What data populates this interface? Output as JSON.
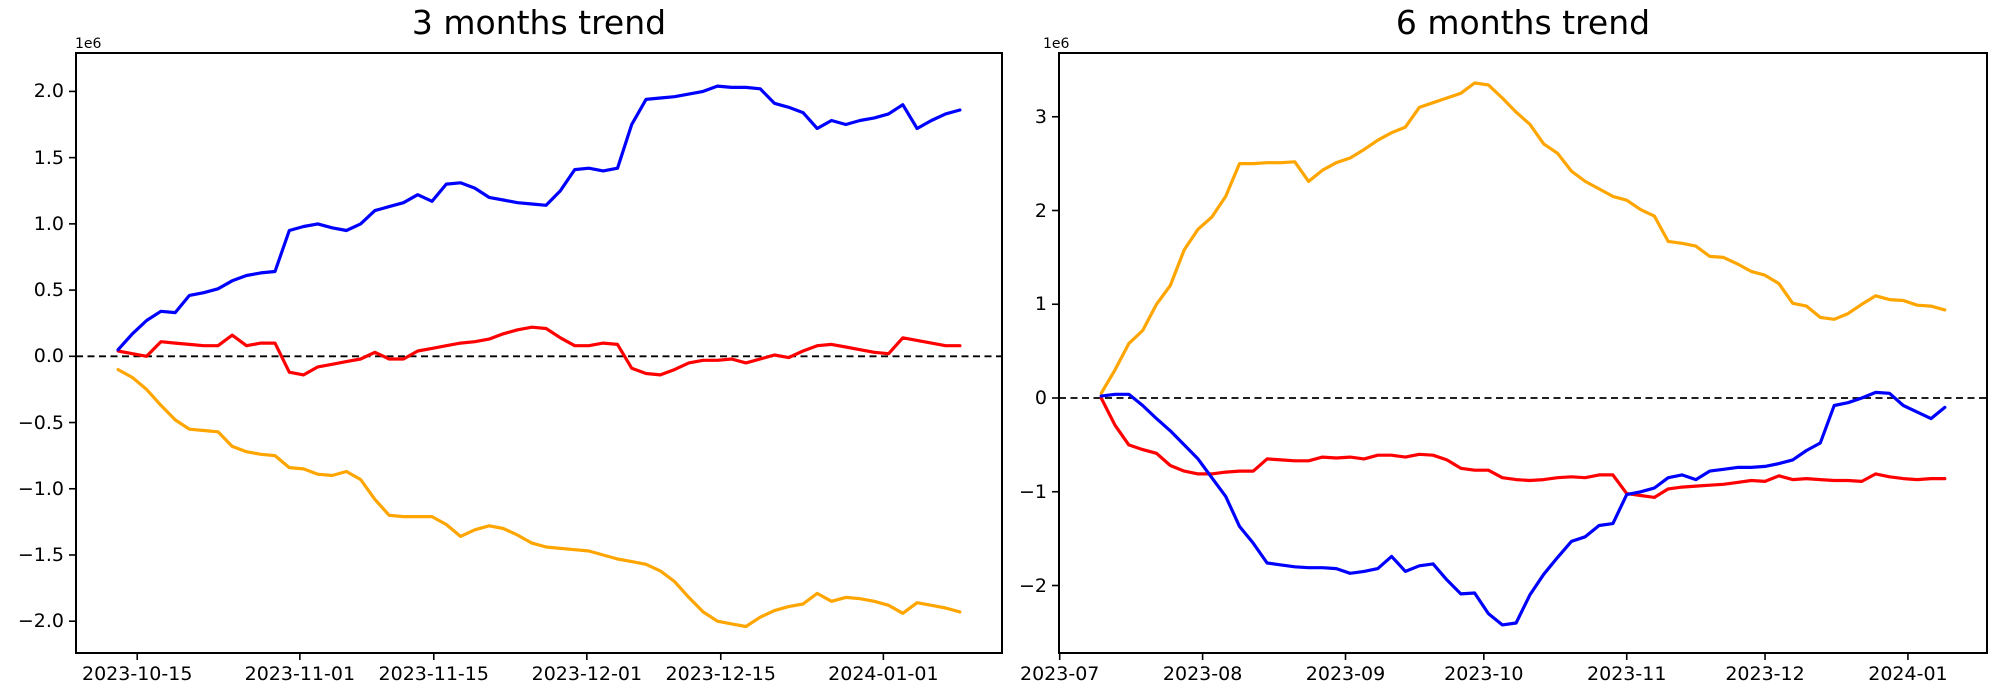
{
  "chart_data": [
    {
      "type": "line",
      "title": "3 months trend",
      "scale_label": "1e6",
      "xlabel": "",
      "ylabel": "",
      "grid": false,
      "legend": null,
      "ylim": [
        -2.24,
        2.29
      ],
      "xlim_days": [
        -4.4,
        92.4
      ],
      "data_day_span": [
        0,
        88
      ],
      "zero_line": {
        "value": 0,
        "style": "dashed",
        "color": "#000000"
      },
      "yticks": [
        {
          "label": "2.0",
          "value": 2.0
        },
        {
          "label": "1.5",
          "value": 1.5
        },
        {
          "label": "1.0",
          "value": 1.0
        },
        {
          "label": "0.5",
          "value": 0.5
        },
        {
          "label": "0.0",
          "value": 0.0
        },
        {
          "label": "−0.5",
          "value": -0.5
        },
        {
          "label": "−1.0",
          "value": -1.0
        },
        {
          "label": "−1.5",
          "value": -1.5
        },
        {
          "label": "−2.0",
          "value": -2.0
        }
      ],
      "xticks": [
        {
          "label": "2023-10-15",
          "day": 2
        },
        {
          "label": "2023-11-01",
          "day": 19
        },
        {
          "label": "2023-11-15",
          "day": 33
        },
        {
          "label": "2023-12-01",
          "day": 49
        },
        {
          "label": "2023-12-15",
          "day": 63
        },
        {
          "label": "2024-01-01",
          "day": 80
        }
      ],
      "series": [
        {
          "name": "series-orange",
          "color": "#ffa500",
          "values": [
            -0.1,
            -0.16,
            -0.25,
            -0.37,
            -0.48,
            -0.55,
            -0.56,
            -0.57,
            -0.68,
            -0.72,
            -0.74,
            -0.75,
            -0.84,
            -0.85,
            -0.89,
            -0.9,
            -0.87,
            -0.93,
            -1.08,
            -1.2,
            -1.21,
            -1.21,
            -1.21,
            -1.27,
            -1.36,
            -1.31,
            -1.28,
            -1.3,
            -1.35,
            -1.41,
            -1.44,
            -1.45,
            -1.46,
            -1.47,
            -1.5,
            -1.53,
            -1.55,
            -1.57,
            -1.62,
            -1.7,
            -1.82,
            -1.93,
            -2.0,
            -2.02,
            -2.04,
            -1.97,
            -1.92,
            -1.89,
            -1.87,
            -1.79,
            -1.85,
            -1.82,
            -1.83,
            -1.85,
            -1.88,
            -1.94,
            -1.86,
            -1.88,
            -1.9,
            -1.93
          ]
        },
        {
          "name": "series-red",
          "color": "#ff0000",
          "values": [
            0.04,
            0.02,
            0.0,
            0.11,
            0.1,
            0.09,
            0.08,
            0.08,
            0.16,
            0.08,
            0.1,
            0.1,
            -0.12,
            -0.14,
            -0.08,
            -0.06,
            -0.04,
            -0.02,
            0.03,
            -0.02,
            -0.02,
            0.04,
            0.06,
            0.08,
            0.1,
            0.11,
            0.13,
            0.17,
            0.2,
            0.22,
            0.21,
            0.14,
            0.08,
            0.08,
            0.1,
            0.09,
            -0.09,
            -0.13,
            -0.14,
            -0.1,
            -0.05,
            -0.03,
            -0.03,
            -0.02,
            -0.05,
            -0.02,
            0.01,
            -0.01,
            0.04,
            0.08,
            0.09,
            0.07,
            0.05,
            0.03,
            0.02,
            0.14,
            0.12,
            0.1,
            0.08,
            0.08
          ]
        },
        {
          "name": "series-blue",
          "color": "#0000ff",
          "values": [
            0.05,
            0.17,
            0.27,
            0.34,
            0.33,
            0.46,
            0.48,
            0.51,
            0.57,
            0.61,
            0.63,
            0.64,
            0.95,
            0.98,
            1.0,
            0.97,
            0.95,
            1.0,
            1.1,
            1.13,
            1.16,
            1.22,
            1.17,
            1.3,
            1.31,
            1.27,
            1.2,
            1.18,
            1.16,
            1.15,
            1.14,
            1.25,
            1.41,
            1.42,
            1.4,
            1.42,
            1.75,
            1.94,
            1.95,
            1.96,
            1.98,
            2.0,
            2.04,
            2.03,
            2.03,
            2.02,
            1.91,
            1.88,
            1.84,
            1.72,
            1.78,
            1.75,
            1.78,
            1.8,
            1.83,
            1.9,
            1.72,
            1.78,
            1.83,
            1.86
          ]
        }
      ]
    },
    {
      "type": "line",
      "title": "6 months trend",
      "scale_label": "1e6",
      "xlabel": "",
      "ylabel": "",
      "grid": false,
      "legend": null,
      "ylim": [
        -2.72,
        3.68
      ],
      "xlim_days": [
        -9.15,
        192.15
      ],
      "data_day_span": [
        0,
        183
      ],
      "zero_line": {
        "value": 0,
        "style": "dashed",
        "color": "#000000"
      },
      "yticks": [
        {
          "label": "3",
          "value": 3.0
        },
        {
          "label": "2",
          "value": 2.0
        },
        {
          "label": "1",
          "value": 1.0
        },
        {
          "label": "0",
          "value": 0.0
        },
        {
          "label": "−1",
          "value": -1.0
        },
        {
          "label": "−2",
          "value": -2.0
        }
      ],
      "xticks": [
        {
          "label": "2023-07",
          "day": -9
        },
        {
          "label": "2023-08",
          "day": 22
        },
        {
          "label": "2023-09",
          "day": 53
        },
        {
          "label": "2023-10",
          "day": 83
        },
        {
          "label": "2023-11",
          "day": 114
        },
        {
          "label": "2023-12",
          "day": 144
        },
        {
          "label": "2024-01",
          "day": 175
        }
      ],
      "series": [
        {
          "name": "series-orange",
          "color": "#ffa500",
          "values": [
            0.05,
            0.3,
            0.58,
            0.72,
            1.0,
            1.2,
            1.58,
            1.8,
            1.93,
            2.15,
            2.5,
            2.5,
            2.51,
            2.51,
            2.52,
            2.31,
            2.43,
            2.51,
            2.56,
            2.65,
            2.75,
            2.83,
            2.89,
            3.1,
            3.15,
            3.2,
            3.25,
            3.36,
            3.34,
            3.2,
            3.05,
            2.92,
            2.71,
            2.61,
            2.42,
            2.31,
            2.23,
            2.15,
            2.11,
            2.01,
            1.94,
            1.67,
            1.65,
            1.62,
            1.51,
            1.5,
            1.43,
            1.35,
            1.31,
            1.22,
            1.01,
            0.98,
            0.86,
            0.84,
            0.9,
            1.0,
            1.09,
            1.05,
            1.04,
            0.99,
            0.98,
            0.94
          ]
        },
        {
          "name": "series-red",
          "color": "#ff0000",
          "values": [
            0.0,
            -0.29,
            -0.5,
            -0.55,
            -0.59,
            -0.72,
            -0.78,
            -0.81,
            -0.81,
            -0.79,
            -0.78,
            -0.78,
            -0.65,
            -0.66,
            -0.67,
            -0.67,
            -0.63,
            -0.64,
            -0.63,
            -0.65,
            -0.61,
            -0.61,
            -0.63,
            -0.6,
            -0.61,
            -0.66,
            -0.75,
            -0.77,
            -0.77,
            -0.85,
            -0.87,
            -0.88,
            -0.87,
            -0.85,
            -0.84,
            -0.85,
            -0.82,
            -0.82,
            -1.02,
            -1.04,
            -1.06,
            -0.97,
            -0.95,
            -0.94,
            -0.93,
            -0.92,
            -0.9,
            -0.88,
            -0.89,
            -0.83,
            -0.87,
            -0.86,
            -0.87,
            -0.88,
            -0.88,
            -0.89,
            -0.81,
            -0.84,
            -0.86,
            -0.87,
            -0.86,
            -0.86
          ]
        },
        {
          "name": "series-blue",
          "color": "#0000ff",
          "values": [
            0.02,
            0.04,
            0.04,
            -0.08,
            -0.22,
            -0.35,
            -0.5,
            -0.65,
            -0.85,
            -1.05,
            -1.37,
            -1.55,
            -1.76,
            -1.78,
            -1.8,
            -1.81,
            -1.81,
            -1.82,
            -1.87,
            -1.85,
            -1.82,
            -1.69,
            -1.85,
            -1.79,
            -1.77,
            -1.94,
            -2.09,
            -2.08,
            -2.3,
            -2.42,
            -2.4,
            -2.1,
            -1.88,
            -1.7,
            -1.53,
            -1.48,
            -1.36,
            -1.34,
            -1.03,
            -1.0,
            -0.96,
            -0.85,
            -0.82,
            -0.87,
            -0.78,
            -0.76,
            -0.74,
            -0.74,
            -0.73,
            -0.7,
            -0.66,
            -0.56,
            -0.48,
            -0.08,
            -0.05,
            0.0,
            0.06,
            0.05,
            -0.08,
            -0.15,
            -0.22,
            -0.1
          ]
        }
      ]
    }
  ]
}
